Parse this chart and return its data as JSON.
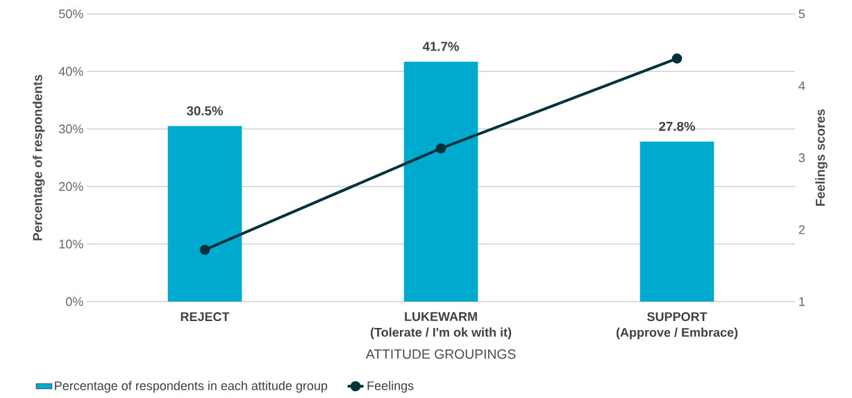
{
  "chart_data": {
    "type": "bar",
    "xlabel": "ATTITUDE GROUPINGS",
    "ylabel": "Percentage of respondents",
    "y2label": "Feelings scores",
    "categories": [
      "REJECT",
      "LUKEWARM\n(Tolerate / I'm ok with it)",
      "SUPPORT\n(Approve / Embrace)"
    ],
    "series": [
      {
        "name": "Percentage of respondents in each attitude group",
        "color": "#00a9ce",
        "values": [
          30.5,
          41.7,
          27.8
        ],
        "value_labels": [
          "30.5%",
          "41.7%",
          "27.8%"
        ]
      },
      {
        "name": "Feelings",
        "type": "line",
        "axis": "y2",
        "color": "#00313c",
        "marker": "circle",
        "values": [
          1.72,
          3.13,
          4.38
        ]
      }
    ],
    "ylim": [
      0,
      50
    ],
    "yticks": [
      {
        "value": 0,
        "label": "0%"
      },
      {
        "value": 10,
        "label": "10%"
      },
      {
        "value": 20,
        "label": "20%"
      },
      {
        "value": 30,
        "label": "30%"
      },
      {
        "value": 40,
        "label": "40%"
      },
      {
        "value": 50,
        "label": "50%"
      }
    ],
    "y2lim": [
      1,
      5
    ],
    "y2ticks": [
      1,
      2,
      3,
      4,
      5
    ],
    "grid": "y",
    "legend": "bottom"
  }
}
